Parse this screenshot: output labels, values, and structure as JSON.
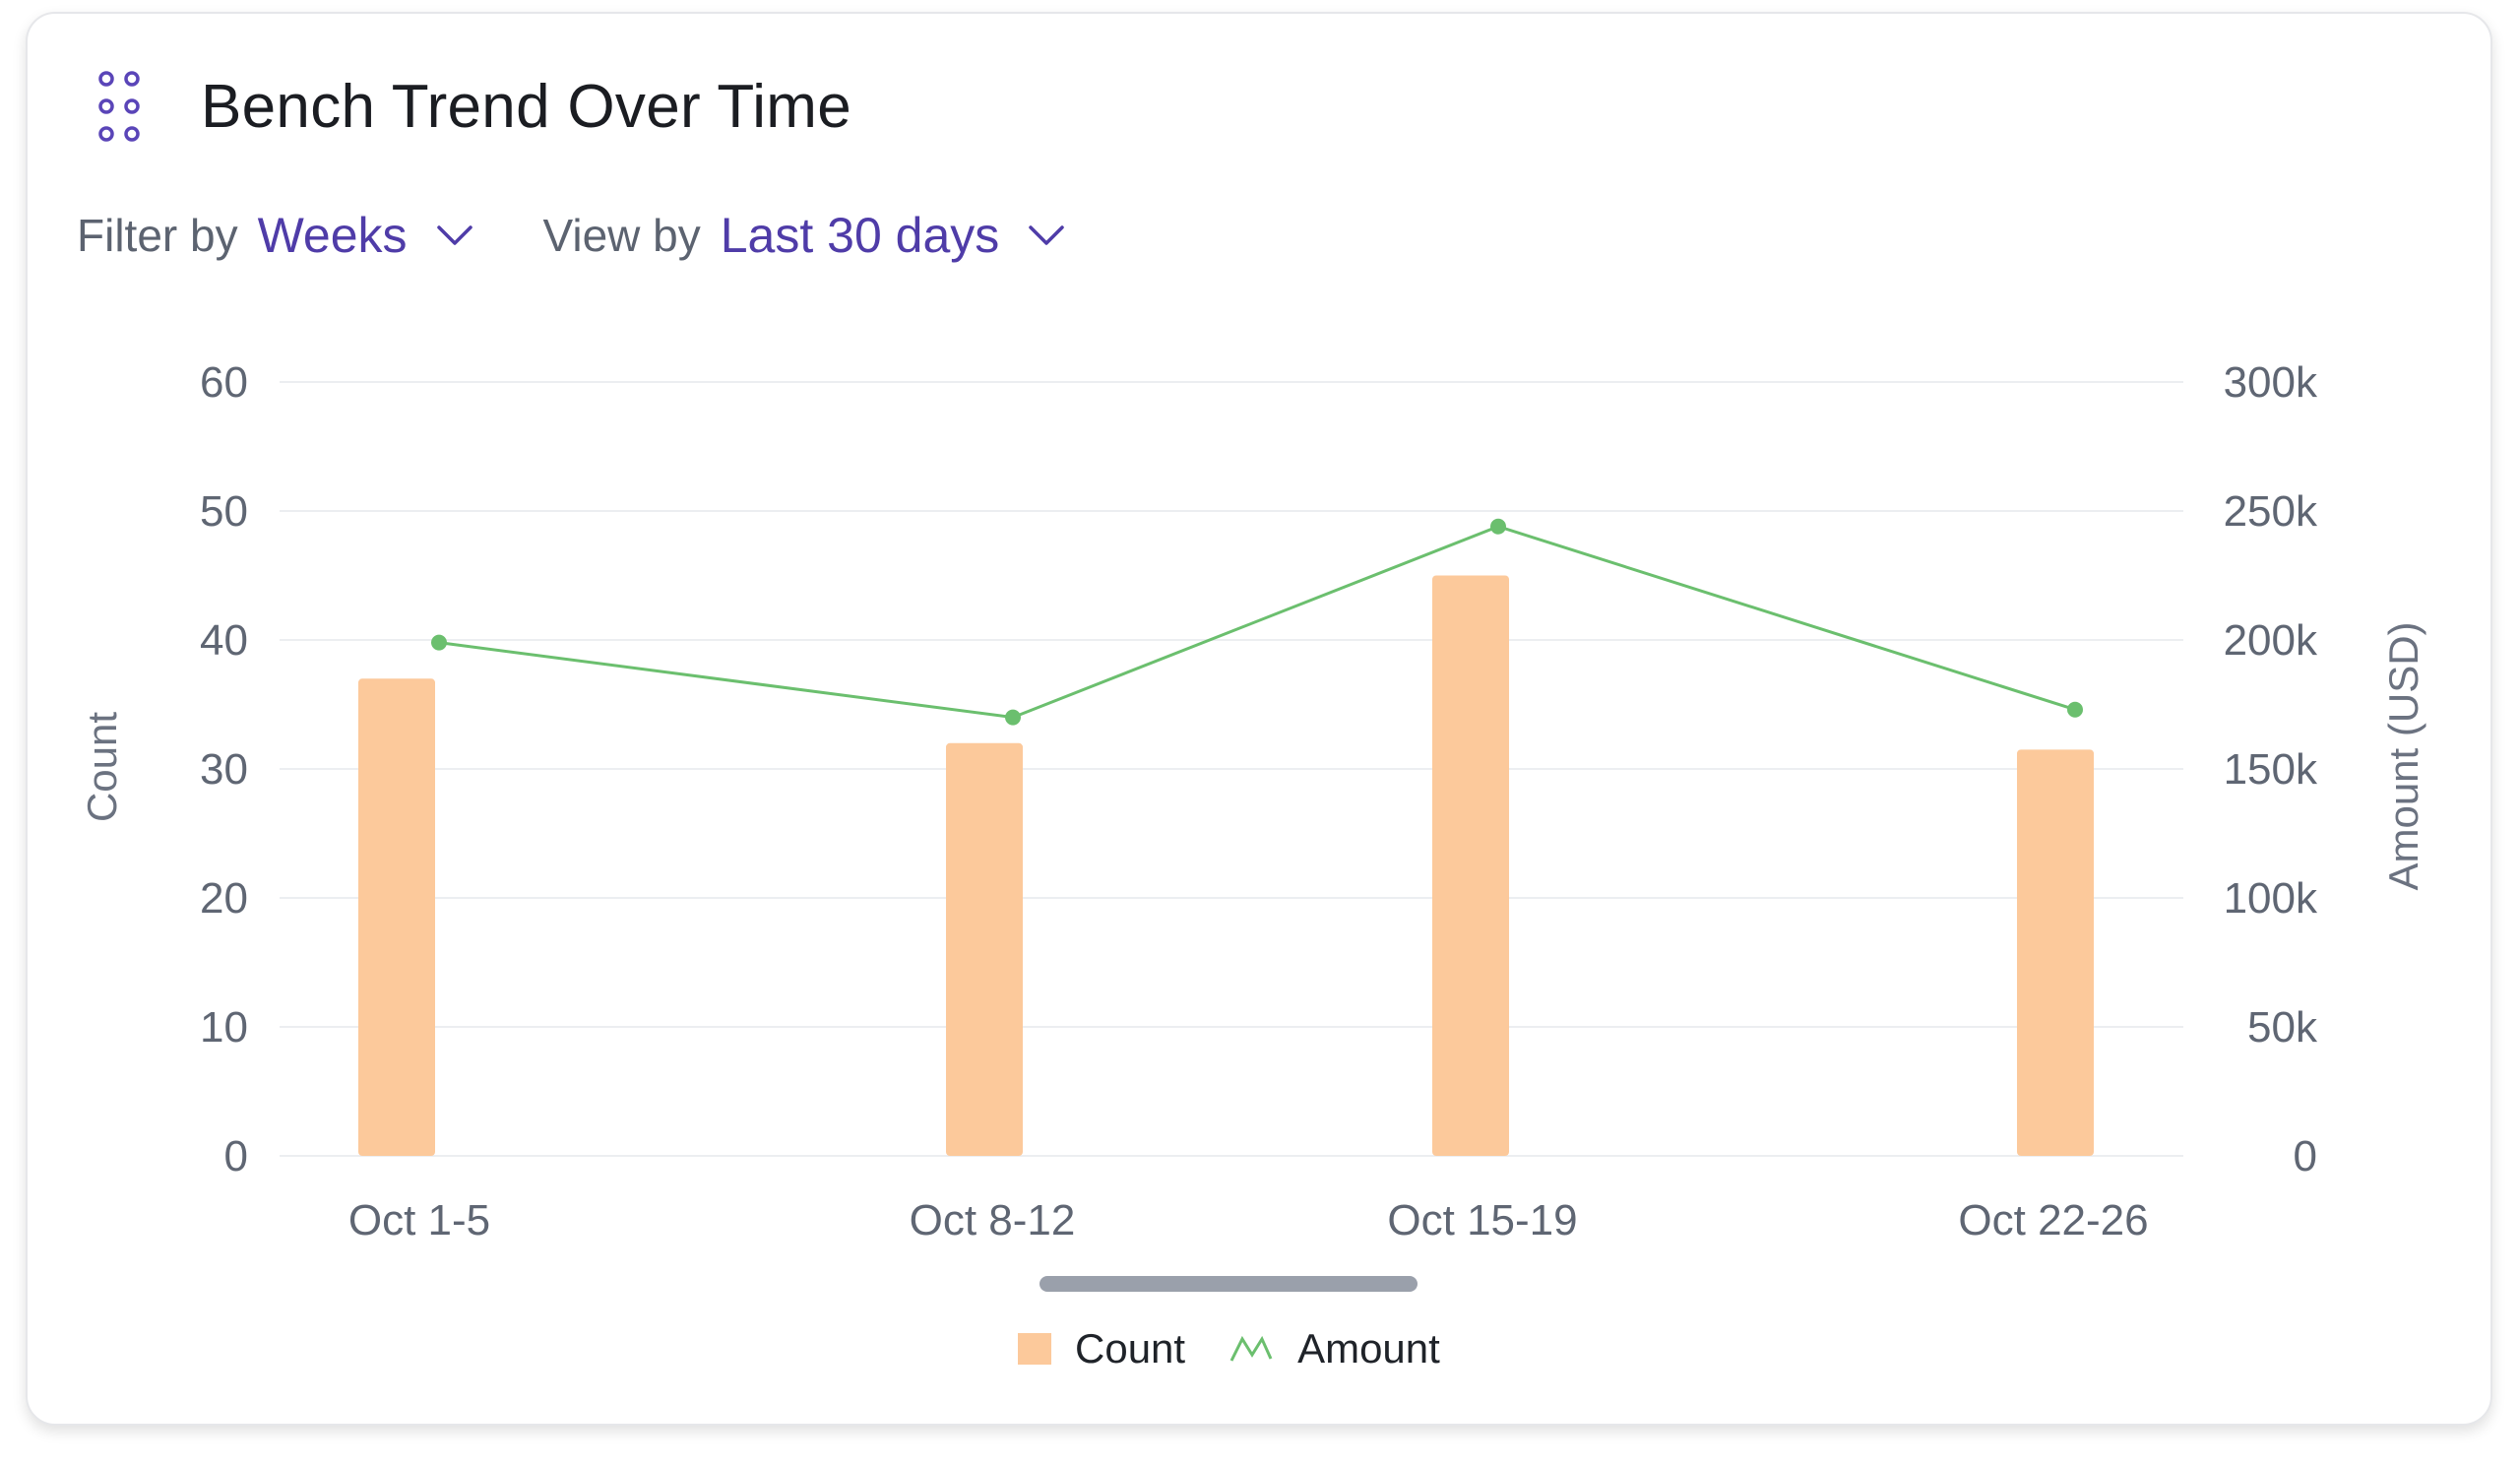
{
  "widget": {
    "title": "Bench Trend Over Time",
    "icon": "drag-handle-dots-icon"
  },
  "filters": {
    "filter_by_label": "Filter by",
    "filter_by_value": "Weeks",
    "view_by_label": "View by",
    "view_by_value": "Last 30 days"
  },
  "colors": {
    "accent": "#4f3ca8",
    "bar": "#fcc99b",
    "line": "#6bbf6e",
    "grid": "#eceef1"
  },
  "chart_data": {
    "type": "bar",
    "categories": [
      "Oct 1-5",
      "Oct 8-12",
      "Oct 15-19",
      "Oct 22-26"
    ],
    "series": [
      {
        "name": "Count",
        "type": "bar",
        "axis": "left",
        "values": [
          37,
          32,
          45,
          31.5
        ]
      },
      {
        "name": "Amount",
        "type": "line",
        "axis": "right",
        "values": [
          199000,
          170000,
          244000,
          173000
        ]
      }
    ],
    "ylabel": "Count",
    "y2label": "Amount (USD)",
    "ylim": [
      0,
      60
    ],
    "y2lim": [
      0,
      300000
    ],
    "yticks": [
      "0",
      "10",
      "20",
      "30",
      "40",
      "50",
      "60"
    ],
    "y2ticks": [
      "0",
      "50k",
      "100k",
      "150k",
      "200k",
      "250k",
      "300k"
    ],
    "grid": true,
    "legend": "bottom-center"
  },
  "legend": {
    "count_label": "Count",
    "amount_label": "Amount"
  }
}
